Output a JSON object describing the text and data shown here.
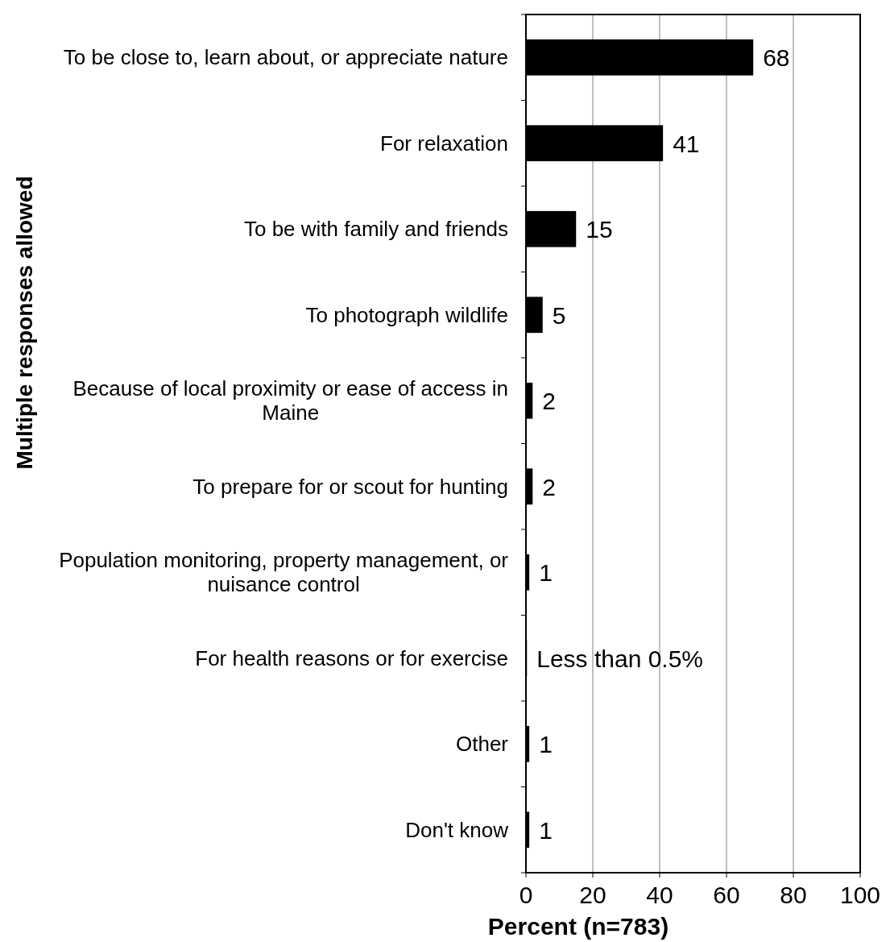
{
  "chart_data": {
    "type": "bar",
    "orientation": "horizontal",
    "xlabel": "Percent (n=783)",
    "ylabel": "Multiple responses allowed",
    "categories": [
      "To be close to, learn about, or appreciate nature",
      "For relaxation",
      "To be with family and friends",
      "To photograph wildlife",
      "Because of local proximity or ease of access in Maine",
      "To prepare for or scout for hunting",
      "Population monitoring, property management, or nuisance control",
      "For health reasons or for exercise",
      "Other",
      "Don't know"
    ],
    "values": [
      68,
      41,
      15,
      5,
      2,
      2,
      1,
      0.3,
      1,
      1
    ],
    "value_labels": [
      "68",
      "41",
      "15",
      "5",
      "2",
      "2",
      "1",
      "Less than 0.5%",
      "1",
      "1"
    ],
    "color": "#000000",
    "xlim": [
      0,
      100
    ],
    "xticks": [
      0,
      20,
      40,
      60,
      80,
      100
    ],
    "grid": "x"
  }
}
